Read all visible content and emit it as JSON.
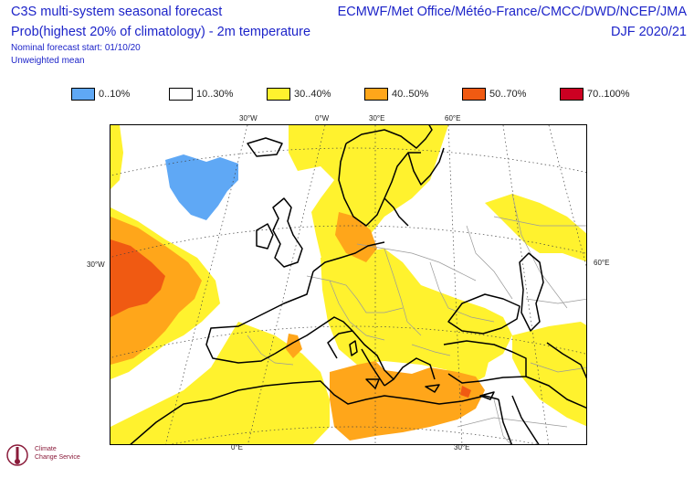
{
  "header": {
    "title": "C3S multi-system seasonal forecast",
    "subtitle": "Prob(highest 20% of climatology) - 2m temperature",
    "start": "Nominal forecast start: 01/10/20",
    "mean": "Unweighted mean",
    "centres": "ECMWF/Met Office/Météo-France/CMCC/DWD/NCEP/JMA",
    "season": "DJF 2020/21"
  },
  "legend": [
    {
      "label": "0..10%",
      "color": "#5fa8f5"
    },
    {
      "label": "10..30%",
      "color": "#ffffff"
    },
    {
      "label": "30..40%",
      "color": "#fff22e"
    },
    {
      "label": "40..50%",
      "color": "#ffa61a"
    },
    {
      "label": "50..70%",
      "color": "#f05a12"
    },
    {
      "label": "70..100%",
      "color": "#cc0022"
    }
  ],
  "ticks": {
    "top": [
      "30°W",
      "0°W",
      "30°E",
      "60°E"
    ],
    "left": "30°W",
    "right": "60°E",
    "bottom": [
      "0°E",
      "30°E"
    ]
  },
  "logo": {
    "line1": "Climate",
    "line2": "Change Service"
  }
}
